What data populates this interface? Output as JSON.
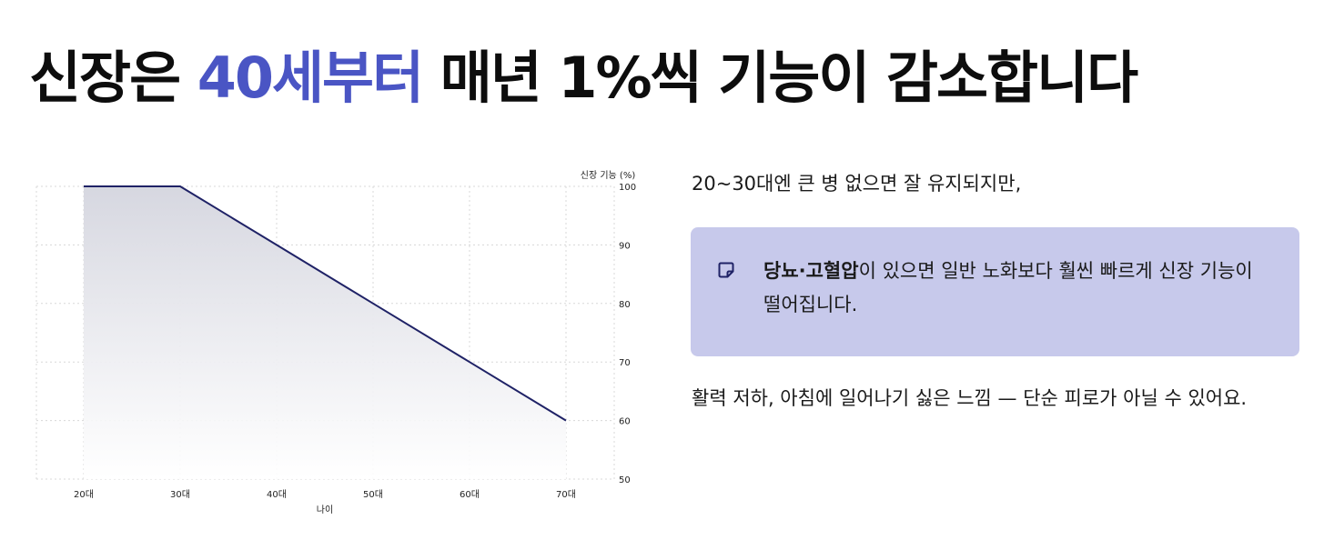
{
  "headline": {
    "before": "신장은 ",
    "highlight": "40세부터",
    "after": " 매년 1%씩 기능이 감소합니다"
  },
  "chart_data": {
    "type": "area",
    "x_categories": [
      "20대",
      "30대",
      "40대",
      "50대",
      "60대",
      "70대"
    ],
    "series": [
      {
        "values": [
          100,
          100,
          90,
          80,
          70,
          60
        ]
      }
    ],
    "xlabel": "나이",
    "ylabel": "신장 기능 (%)",
    "ylim": [
      50,
      100
    ],
    "yticks": [
      50,
      60,
      70,
      80,
      90,
      100
    ],
    "y_axis_side": "right",
    "grid": true,
    "line_color": "#1f2266"
  },
  "text": {
    "para1": "20~30대엔 큰 병 없으면 잘 유지되지만,",
    "callout_bold": "당뇨·고혈압",
    "callout_rest": "이 있으면 일반 노화보다 훨씬 빠르게 신장 기능이 떨어집니다.",
    "para3": "활력 저하, 아침에 일어나기 싫은 느낌 — 단순 피로가 아닐 수 있어요."
  },
  "icons": {
    "callout": "note-icon"
  },
  "colors": {
    "accent": "#4a55c4",
    "callout_bg": "#c7c9eb",
    "callout_icon": "#1f2266"
  }
}
